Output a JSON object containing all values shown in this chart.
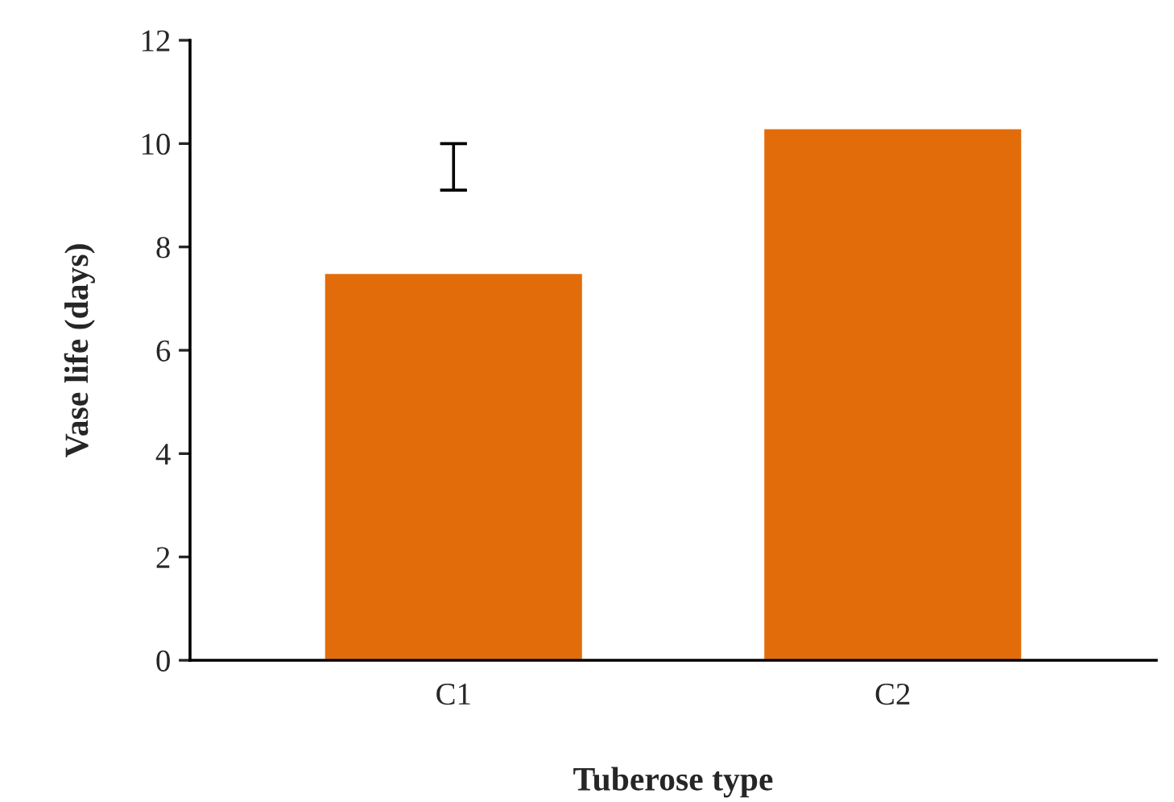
{
  "chart_data": {
    "type": "bar",
    "xlabel": "Tuberose type",
    "ylabel": "Vase life (days)",
    "categories": [
      "C1",
      "C2"
    ],
    "values": [
      7.5,
      10.3
    ],
    "color": "#e36c0a",
    "errors": [
      [
        9.1,
        10.0
      ],
      null
    ],
    "ylim": [
      0,
      12
    ],
    "yticks": [
      0,
      2,
      4,
      6,
      8,
      10,
      12
    ],
    "grid": false,
    "legend": false
  }
}
